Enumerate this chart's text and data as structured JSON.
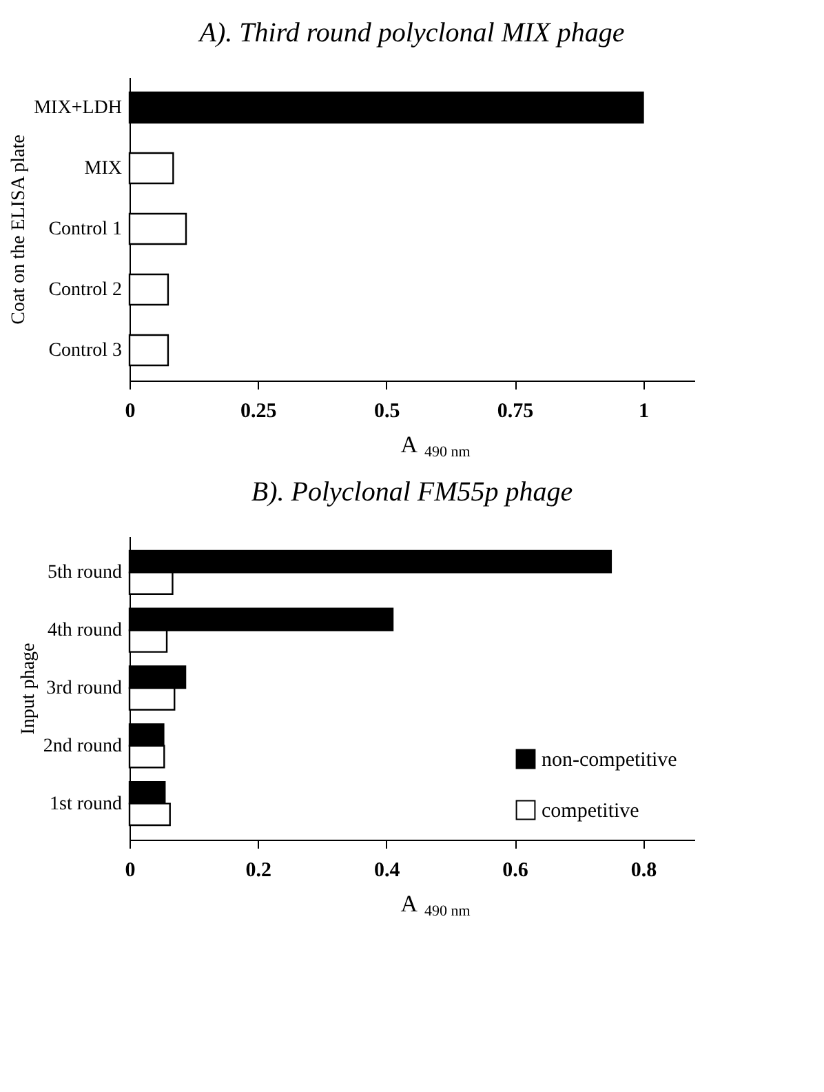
{
  "chart_data": [
    {
      "type": "bar",
      "orientation": "horizontal",
      "title": "A). Third round polyclonal MIX phage",
      "xlabel": "A$_{490 nm}$",
      "ylabel": "Coat on the ELISA plate",
      "categories": [
        "MIX+LDH",
        "MIX",
        "Control 1",
        "Control 2",
        "Control 3"
      ],
      "values": [
        1.0,
        0.085,
        0.11,
        0.075,
        0.075
      ],
      "colors": [
        "#000000",
        "#ffffff",
        "#ffffff",
        "#ffffff",
        "#ffffff"
      ],
      "xlim": [
        0,
        1.1
      ],
      "xticks": [
        0,
        0.25,
        0.5,
        0.75,
        1
      ],
      "grid": false,
      "legend": false
    },
    {
      "type": "bar",
      "orientation": "horizontal",
      "title": "B). Polyclonal FM55p phage",
      "xlabel": "A$_{490 nm}$",
      "ylabel": "Input phage",
      "categories": [
        "5th round",
        "4th round",
        "3rd round",
        "2nd round",
        "1st round"
      ],
      "series": [
        {
          "name": "non-competitive",
          "color": "#000000",
          "values": [
            0.75,
            0.41,
            0.087,
            0.053,
            0.055
          ]
        },
        {
          "name": "competitive",
          "color": "#ffffff",
          "values": [
            0.067,
            0.058,
            0.07,
            0.054,
            0.063
          ]
        }
      ],
      "xlim": [
        0,
        0.88
      ],
      "xticks": [
        0,
        0.2,
        0.4,
        0.6,
        0.8
      ],
      "grid": false,
      "legend": "bottom right"
    }
  ]
}
